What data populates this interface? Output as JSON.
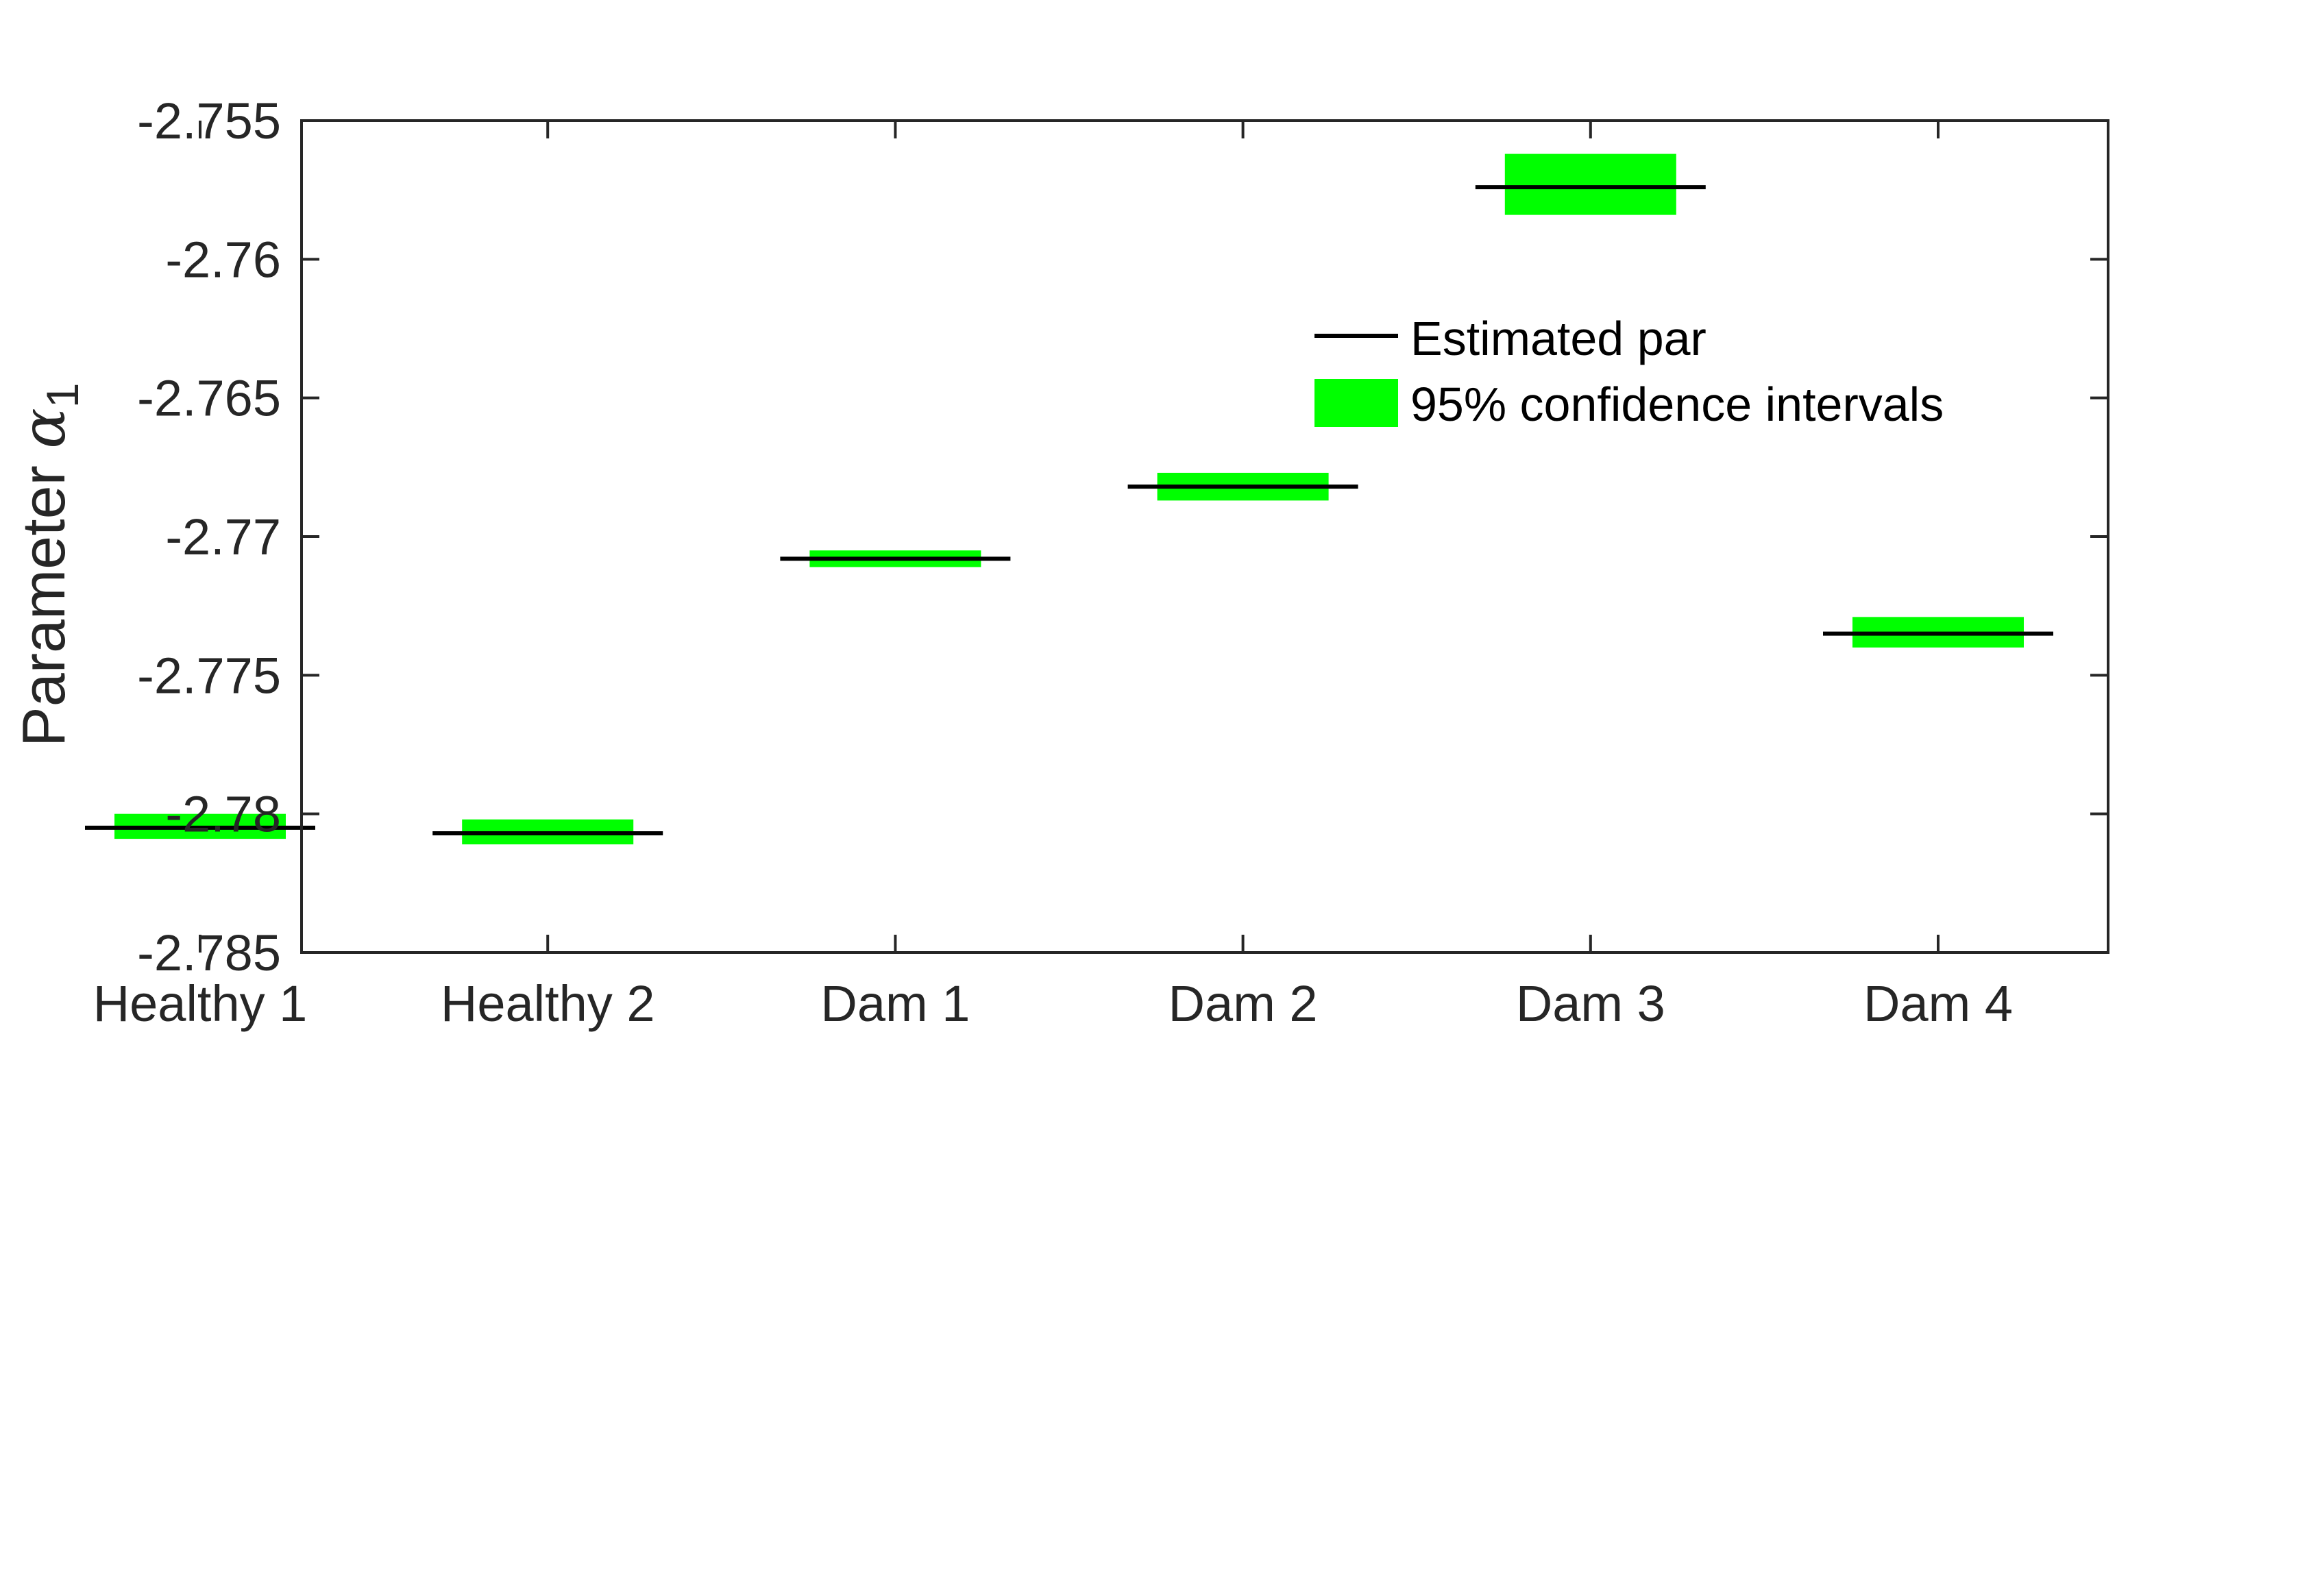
{
  "chart_data": {
    "type": "interval",
    "categories": [
      "Healthy 1",
      "Healthy 2",
      "Dam 1",
      "Dam 2",
      "Dam 3",
      "Dam 4"
    ],
    "series": [
      {
        "name": "Estimated par",
        "values": [
          -2.7805,
          -2.7807,
          -2.7708,
          -2.7682,
          -2.7574,
          -2.7735
        ]
      },
      {
        "name": "95% confidence intervals",
        "lower": [
          -2.7809,
          -2.7811,
          -2.7711,
          -2.7687,
          -2.7584,
          -2.774
        ],
        "upper": [
          -2.78,
          -2.7802,
          -2.7705,
          -2.7677,
          -2.7562,
          -2.7729
        ]
      }
    ],
    "ylabel": "Parameter",
    "ylabel_symbol": "α",
    "ylabel_subscript": "1",
    "ylim": [
      -2.785,
      -2.755
    ],
    "yticks": [
      -2.755,
      -2.76,
      -2.765,
      -2.77,
      -2.775,
      -2.78,
      -2.785
    ],
    "ytick_labels": [
      "-2.755",
      "-2.76",
      "-2.765",
      "-2.77",
      "-2.775",
      "-2.78",
      "-2.785"
    ],
    "grid": false,
    "legend_position": "upper-right",
    "colors": {
      "estimate": "#000000",
      "interval": "#00ff00",
      "axes": "#262626"
    }
  }
}
